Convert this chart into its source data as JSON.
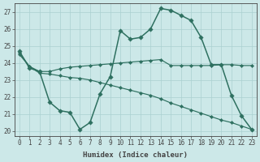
{
  "xlabel": "Humidex (Indice chaleur)",
  "x_labels": [
    "0",
    "1",
    "2",
    "3",
    "4",
    "5",
    "6",
    "7",
    "8",
    "9",
    "10",
    "11",
    "12",
    "13",
    "14",
    "15",
    "16",
    "17",
    "18",
    "19",
    "20",
    "21",
    "22",
    "23"
  ],
  "ylim": [
    19.7,
    27.5
  ],
  "yticks": [
    20,
    21,
    22,
    23,
    24,
    25,
    26,
    27
  ],
  "line1": {
    "x": [
      0,
      1,
      2,
      3,
      4,
      5,
      6,
      7,
      8,
      9,
      10,
      11,
      12,
      13,
      14,
      15,
      16,
      17,
      18,
      19,
      20,
      21,
      22,
      23
    ],
    "y": [
      24.7,
      23.7,
      23.5,
      21.7,
      21.2,
      21.1,
      20.1,
      20.5,
      22.2,
      23.2,
      25.9,
      25.4,
      25.5,
      26.0,
      27.2,
      27.1,
      26.8,
      26.5,
      25.5,
      23.9,
      23.9,
      22.1,
      20.9,
      20.1
    ]
  },
  "line2": {
    "x": [
      0,
      1,
      2,
      3,
      4,
      5,
      6,
      7,
      8,
      9,
      10,
      11,
      12,
      13,
      14,
      15,
      16,
      17,
      18,
      19,
      20,
      21,
      22,
      23
    ],
    "y": [
      24.6,
      23.8,
      23.5,
      23.5,
      23.65,
      23.75,
      23.8,
      23.85,
      23.9,
      23.95,
      24.0,
      24.05,
      24.1,
      24.15,
      24.2,
      23.85,
      23.85,
      23.85,
      23.85,
      23.85,
      23.9,
      23.9,
      23.85,
      23.85
    ]
  },
  "line3": {
    "x": [
      0,
      1,
      2,
      3,
      4,
      5,
      6,
      7,
      8,
      9,
      10,
      11,
      12,
      13,
      14,
      15,
      16,
      17,
      18,
      19,
      20,
      21,
      22,
      23
    ],
    "y": [
      24.5,
      23.8,
      23.4,
      23.35,
      23.25,
      23.15,
      23.1,
      23.0,
      22.85,
      22.7,
      22.55,
      22.4,
      22.25,
      22.1,
      21.9,
      21.65,
      21.45,
      21.25,
      21.05,
      20.85,
      20.65,
      20.5,
      20.3,
      20.1
    ]
  },
  "line_color": "#2e7060",
  "marker": "D",
  "marker_size_big": 2.8,
  "marker_size_small": 2.2,
  "lw_big": 1.1,
  "lw_small": 0.85,
  "bg_color": "#cce8e8",
  "grid_color": "#aad0d0",
  "axis_color": "#444444",
  "label_fontsize": 6.5,
  "tick_fontsize": 5.5
}
